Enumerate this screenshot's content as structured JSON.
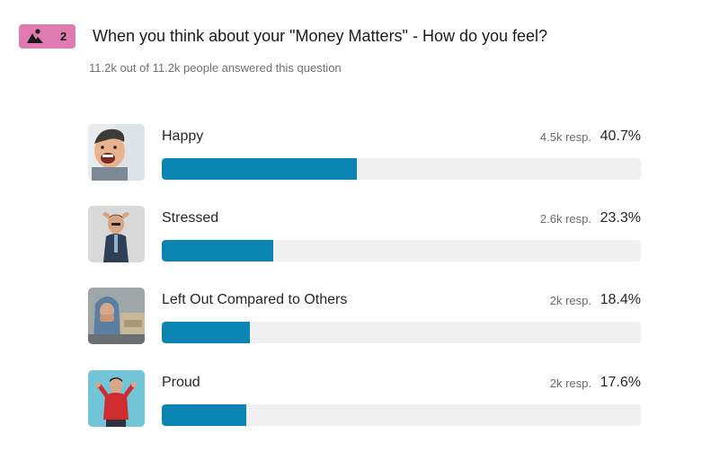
{
  "question": {
    "number": "2",
    "badge_color": "#e07bb2",
    "badge_icon": "image-icon",
    "title": "When you think about your \"Money Matters\" - How do you feel?",
    "answered_text": "11.2k out of 11.2k people answered this question"
  },
  "bar_color": "#0a85b3",
  "options": [
    {
      "label": "Happy",
      "responses": "4.5k resp.",
      "percent": "40.7%",
      "fraction": 0.407,
      "image": "happy-child-photo"
    },
    {
      "label": "Stressed",
      "responses": "2.6k resp.",
      "percent": "23.3%",
      "fraction": 0.233,
      "image": "stressed-man-photo"
    },
    {
      "label": "Left Out Compared to Others",
      "responses": "2k resp.",
      "percent": "18.4%",
      "fraction": 0.184,
      "image": "sad-hooded-person-photo"
    },
    {
      "label": "Proud",
      "responses": "2k resp.",
      "percent": "17.6%",
      "fraction": 0.176,
      "image": "proud-man-photo"
    }
  ]
}
